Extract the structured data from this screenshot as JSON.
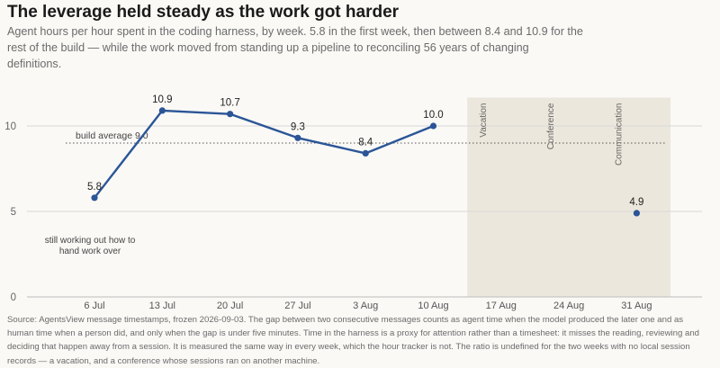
{
  "title": "The leverage held steady as the work got harder",
  "subtitle": "Agent hours per hour spent in the coding harness, by week. 5.8 in the first week, then between 8.4 and 10.9 for the rest of the build — while the work moved from standing up a pipeline to reconciling 56 years of changing definitions.",
  "source": "Source: AgentsView message timestamps, frozen 2026-09-03. The gap between two consecutive messages counts as agent time when the model produced the later one and as human time when a person did, and only when the gap is under five minutes. Time in the harness is a proxy for attention rather than a timesheet: it misses the reading, reviewing and deciding that happen away from a session. It is measured the same way in every week, which the hour tracker is not. The ratio is undefined for the two weeks with no local session records — a vacation, and a conference whose sessions ran on another machine.",
  "annotation_first_week": "still working out how to hand work over",
  "chart_data": {
    "type": "line",
    "categories": [
      "6 Jul",
      "13 Jul",
      "20 Jul",
      "27 Jul",
      "3 Aug",
      "10 Aug",
      "17 Aug",
      "24 Aug",
      "31 Aug"
    ],
    "series": [
      {
        "values": [
          5.8,
          10.9,
          10.7,
          9.3,
          8.4,
          10.0,
          null,
          null,
          4.9
        ]
      }
    ],
    "data_labels": [
      "5.8",
      "10.9",
      "10.7",
      "9.3",
      "8.4",
      "10.0",
      "",
      "",
      "4.9"
    ],
    "connected_through_index": 5,
    "yticks": [
      0,
      5,
      10
    ],
    "ylim": [
      0,
      11.5
    ],
    "reference_line": {
      "value": 9.0,
      "label": "build average 9.0"
    },
    "shaded_weeks": {
      "from": "17 Aug",
      "to": "31 Aug"
    },
    "shaded_labels": [
      "Vacation",
      "Conference",
      "Communication"
    ],
    "grid": true,
    "colors": {
      "line": "#2b5597",
      "shade": "#ece7dc",
      "grid": "#d8d8d8",
      "reference": "#555555"
    }
  }
}
